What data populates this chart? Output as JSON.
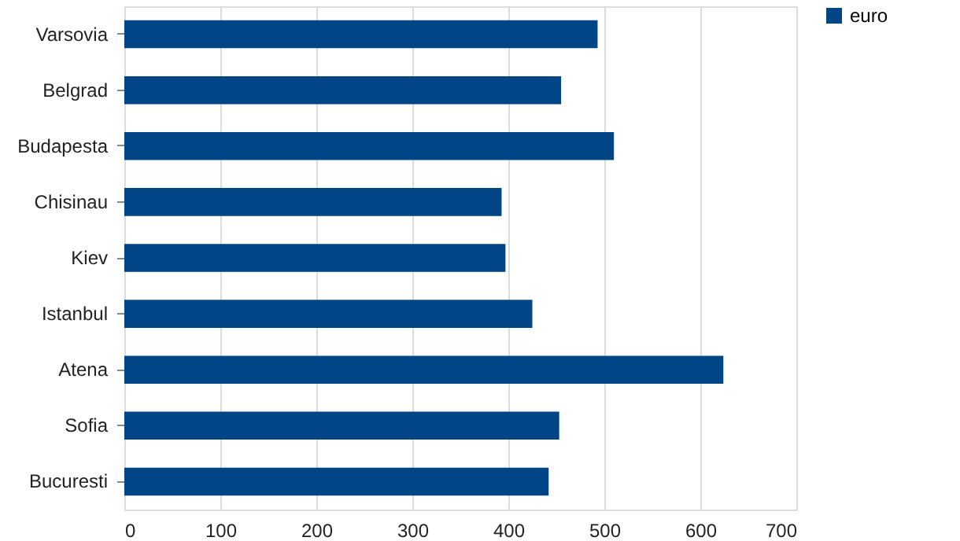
{
  "chart_data": {
    "type": "bar",
    "orientation": "horizontal",
    "categories": [
      "Varsovia",
      "Belgrad",
      "Budapesta",
      "Chisinau",
      "Kiev",
      "Istanbul",
      "Atena",
      "Sofia",
      "Bucuresti"
    ],
    "series": [
      {
        "name": "euro",
        "color": "#004586",
        "values": [
          493,
          455,
          510,
          393,
          397,
          425,
          624,
          453,
          442
        ]
      }
    ],
    "xlim": [
      0,
      700
    ],
    "xticks": [
      0,
      100,
      200,
      300,
      400,
      500,
      600,
      700
    ],
    "grid": "x",
    "legend": "right"
  }
}
